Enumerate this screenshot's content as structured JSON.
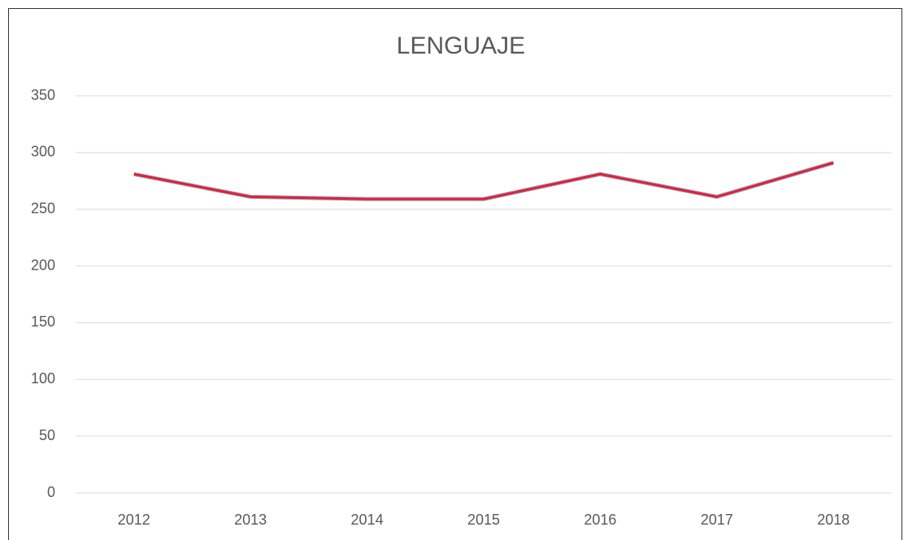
{
  "chart_data": {
    "type": "line",
    "title": "LENGUAJE",
    "categories": [
      "2012",
      "2013",
      "2014",
      "2015",
      "2016",
      "2017",
      "2018"
    ],
    "values": [
      281,
      261,
      259,
      259,
      281,
      261,
      291
    ],
    "color": "#e8202a",
    "ylim": [
      0,
      350
    ],
    "yticks": [
      0,
      50,
      100,
      150,
      200,
      250,
      300,
      350
    ],
    "grid": true
  }
}
